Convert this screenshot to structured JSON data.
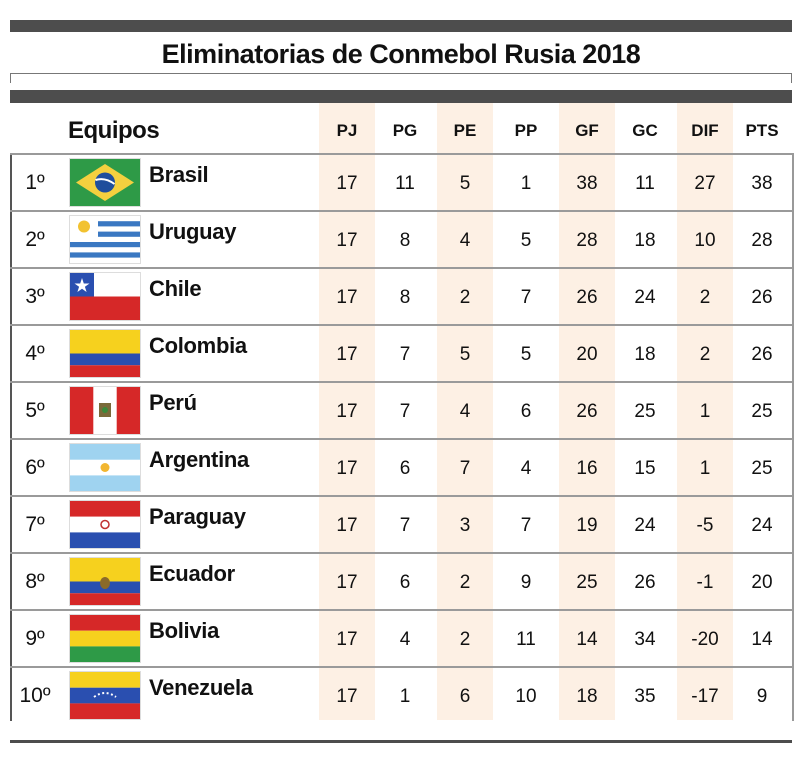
{
  "title": "Eliminatorias de Conmebol Rusia 2018",
  "equipos_label": "Equipos",
  "colors": {
    "bar": "#4d4d4d",
    "shade": "#fdf0e4",
    "rule": "#9a9a9a"
  },
  "chart_data": {
    "type": "table",
    "columns": [
      "PJ",
      "PG",
      "PE",
      "PP",
      "GF",
      "GC",
      "DIF",
      "PTS"
    ],
    "rows": [
      {
        "pos": "1º",
        "team": "Brasil",
        "flag": "brazil-flag-icon",
        "values": [
          "17",
          "11",
          "5",
          "1",
          "38",
          "11",
          "27",
          "38"
        ]
      },
      {
        "pos": "2º",
        "team": "Uruguay",
        "flag": "uruguay-flag-icon",
        "values": [
          "17",
          "8",
          "4",
          "5",
          "28",
          "18",
          "10",
          "28"
        ]
      },
      {
        "pos": "3º",
        "team": "Chile",
        "flag": "chile-flag-icon",
        "values": [
          "17",
          "8",
          "2",
          "7",
          "26",
          "24",
          "2",
          "26"
        ]
      },
      {
        "pos": "4º",
        "team": "Colombia",
        "flag": "colombia-flag-icon",
        "values": [
          "17",
          "7",
          "5",
          "5",
          "20",
          "18",
          "2",
          "26"
        ]
      },
      {
        "pos": "5º",
        "team": "Perú",
        "flag": "peru-flag-icon",
        "values": [
          "17",
          "7",
          "4",
          "6",
          "26",
          "25",
          "1",
          "25"
        ]
      },
      {
        "pos": "6º",
        "team": "Argentina",
        "flag": "argentina-flag-icon",
        "values": [
          "17",
          "6",
          "7",
          "4",
          "16",
          "15",
          "1",
          "25"
        ]
      },
      {
        "pos": "7º",
        "team": "Paraguay",
        "flag": "paraguay-flag-icon",
        "values": [
          "17",
          "7",
          "3",
          "7",
          "19",
          "24",
          "-5",
          "24"
        ]
      },
      {
        "pos": "8º",
        "team": "Ecuador",
        "flag": "ecuador-flag-icon",
        "values": [
          "17",
          "6",
          "2",
          "9",
          "25",
          "26",
          "-1",
          "20"
        ]
      },
      {
        "pos": "9º",
        "team": "Bolivia",
        "flag": "bolivia-flag-icon",
        "values": [
          "17",
          "4",
          "2",
          "11",
          "14",
          "34",
          "-20",
          "14"
        ]
      },
      {
        "pos": "10º",
        "team": "Venezuela",
        "flag": "venezuela-flag-icon",
        "values": [
          "17",
          "1",
          "6",
          "10",
          "18",
          "35",
          "-17",
          "9"
        ]
      }
    ]
  }
}
